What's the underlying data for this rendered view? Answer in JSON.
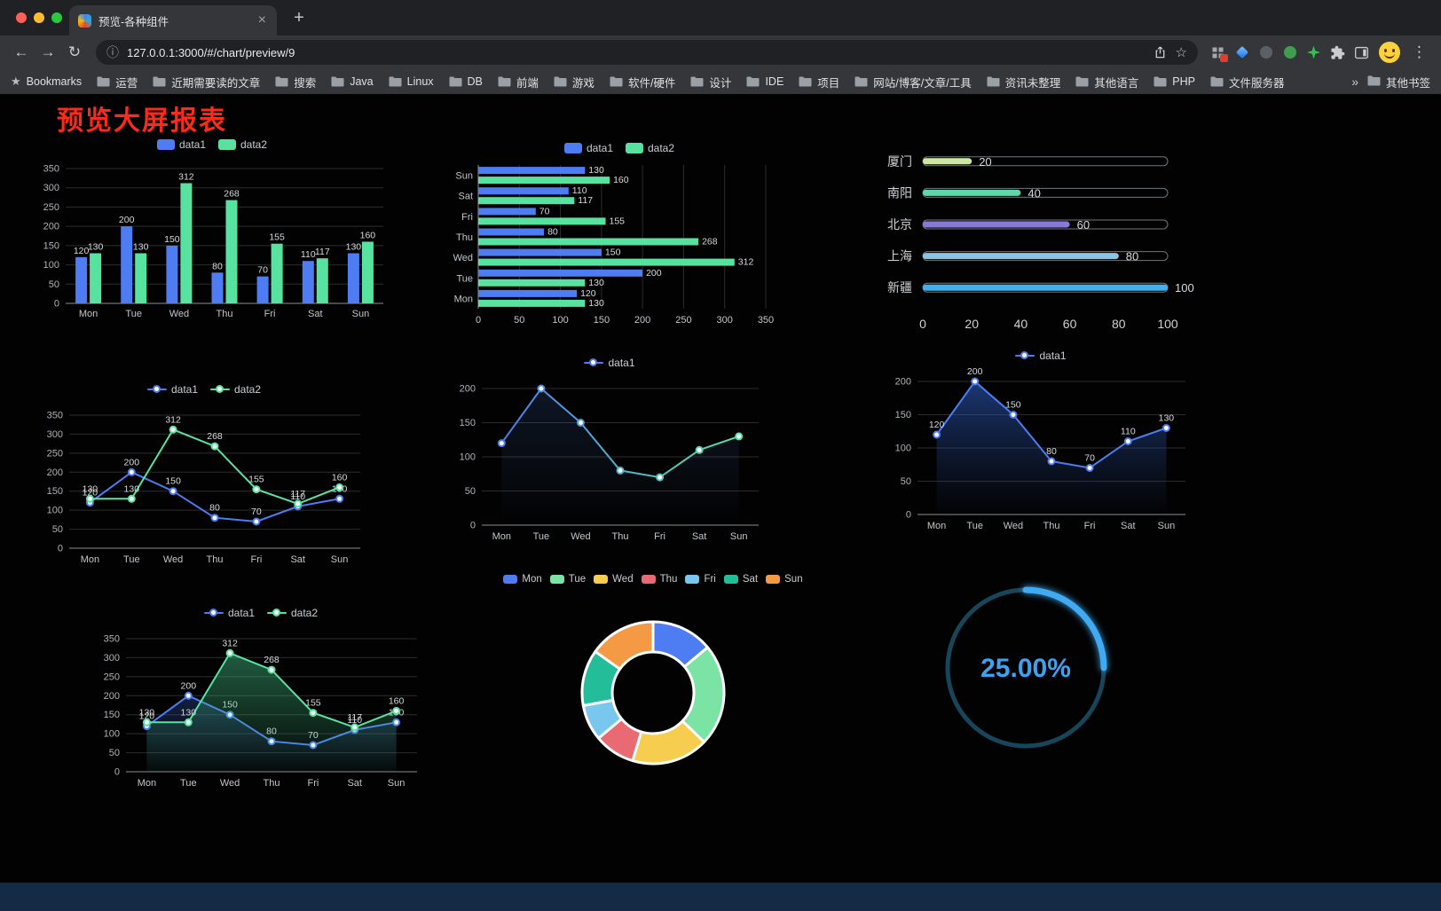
{
  "browser": {
    "tab_title": "预览-各种组件",
    "url": "127.0.0.1:3000/#/chart/preview/9",
    "bookmarks_label": "Bookmarks",
    "bookmarks": [
      "运营",
      "近期需要读的文章",
      "搜索",
      "Java",
      "Linux",
      "DB",
      "前端",
      "游戏",
      "软件/硬件",
      "设计",
      "IDE",
      "项目",
      "网站/博客/文章/工具",
      "资讯未整理",
      "其他语言",
      "PHP",
      "文件服务器"
    ],
    "bookmarks_overflow": "»",
    "other_bookmarks": "其他书签"
  },
  "icons": {
    "back": "←",
    "forward": "→",
    "reload": "↻",
    "info": "ⓘ",
    "star": "☆",
    "menu": "⋮",
    "new_tab": "+",
    "tab_close": "×",
    "bookmarks_star": "★"
  },
  "dashboard": {
    "title": "预览大屏报表",
    "title_color": "#fb2b1b",
    "background": "#020202"
  },
  "chart_data": [
    {
      "type": "bar",
      "categories": [
        "Mon",
        "Tue",
        "Wed",
        "Thu",
        "Fri",
        "Sat",
        "Sun"
      ],
      "series": [
        {
          "name": "data1",
          "color": "#4d7cf3",
          "values": [
            120,
            200,
            150,
            80,
            70,
            110,
            130
          ]
        },
        {
          "name": "data2",
          "color": "#58e2a0",
          "values": [
            130,
            130,
            312,
            268,
            155,
            117,
            160
          ]
        }
      ],
      "ylim": [
        0,
        350
      ],
      "yticks": [
        0,
        50,
        100,
        150,
        200,
        250,
        300,
        350
      ],
      "legend": true,
      "legend_type": "rect",
      "value_labels": true
    },
    {
      "type": "hbar",
      "categories": [
        "Sun",
        "Sat",
        "Fri",
        "Thu",
        "Wed",
        "Tue",
        "Mon"
      ],
      "series": [
        {
          "name": "data1",
          "color": "#4d7cf3",
          "values": [
            130,
            110,
            70,
            80,
            150,
            200,
            120
          ]
        },
        {
          "name": "data2",
          "color": "#58e2a0",
          "values": [
            160,
            117,
            155,
            268,
            312,
            130,
            130
          ]
        }
      ],
      "xlim": [
        0,
        350
      ],
      "xticks": [
        0,
        50,
        100,
        150,
        200,
        250,
        300,
        350
      ],
      "legend": true,
      "legend_type": "rect",
      "value_labels": true
    },
    {
      "type": "progress",
      "max": 100,
      "xticks": [
        0,
        20,
        40,
        60,
        80,
        100
      ],
      "items": [
        {
          "label": "厦门",
          "value": 20,
          "color": "#cbe7a2"
        },
        {
          "label": "南阳",
          "value": 40,
          "color": "#5fd7ab"
        },
        {
          "label": "北京",
          "value": 60,
          "color": "#8679d9"
        },
        {
          "label": "上海",
          "value": 80,
          "color": "#8ac6e4"
        },
        {
          "label": "新疆",
          "value": 100,
          "color": "#3fb1ef"
        }
      ]
    },
    {
      "type": "line",
      "categories": [
        "Mon",
        "Tue",
        "Wed",
        "Thu",
        "Fri",
        "Sat",
        "Sun"
      ],
      "series": [
        {
          "name": "data1",
          "color": "#4d7cf3",
          "values": [
            120,
            200,
            150,
            80,
            70,
            110,
            130
          ]
        },
        {
          "name": "data2",
          "color": "#58e2a0",
          "values": [
            130,
            130,
            312,
            268,
            155,
            117,
            160
          ]
        }
      ],
      "ylim": [
        0,
        350
      ],
      "yticks": [
        0,
        50,
        100,
        150,
        200,
        250,
        300,
        350
      ],
      "legend": true,
      "legend_type": "line",
      "value_labels": true
    },
    {
      "type": "line",
      "categories": [
        "Mon",
        "Tue",
        "Wed",
        "Thu",
        "Fri",
        "Sat",
        "Sun"
      ],
      "series": [
        {
          "name": "data1",
          "color": "#4d7cf3",
          "gradient": [
            "#4d7cf3",
            "#58e2a0"
          ],
          "values": [
            120,
            200,
            150,
            80,
            70,
            110,
            130
          ],
          "area": [
            "rgba(80,130,220,0.16)",
            "rgba(80,130,220,0)"
          ]
        }
      ],
      "ylim": [
        0,
        200
      ],
      "yticks": [
        0,
        50,
        100,
        150,
        200
      ],
      "legend": true,
      "legend_type": "line",
      "value_labels": false
    },
    {
      "type": "line",
      "categories": [
        "Mon",
        "Tue",
        "Wed",
        "Thu",
        "Fri",
        "Sat",
        "Sun"
      ],
      "series": [
        {
          "name": "data1",
          "color": "#4d7cf3",
          "values": [
            120,
            200,
            150,
            80,
            70,
            110,
            130
          ],
          "area": [
            "rgba(50,100,210,0.55)",
            "rgba(40,70,140,0.02)"
          ]
        }
      ],
      "ylim": [
        0,
        200
      ],
      "yticks": [
        0,
        50,
        100,
        150,
        200
      ],
      "legend": true,
      "legend_type": "line",
      "value_labels": true
    },
    {
      "type": "line",
      "categories": [
        "Mon",
        "Tue",
        "Wed",
        "Thu",
        "Fri",
        "Sat",
        "Sun"
      ],
      "series": [
        {
          "name": "data1",
          "color": "#4d7cf3",
          "values": [
            120,
            200,
            150,
            80,
            70,
            110,
            130
          ],
          "area": [
            "rgba(60,100,200,0.30)",
            "rgba(60,100,200,0.02)"
          ]
        },
        {
          "name": "data2",
          "color": "#58e2a0",
          "values": [
            130,
            130,
            312,
            268,
            155,
            117,
            160
          ],
          "area": [
            "rgba(70,200,140,0.45)",
            "rgba(70,200,140,0.03)"
          ]
        }
      ],
      "ylim": [
        0,
        350
      ],
      "yticks": [
        0,
        50,
        100,
        150,
        200,
        250,
        300,
        350
      ],
      "legend": true,
      "legend_type": "line",
      "value_labels": true
    },
    {
      "type": "pie",
      "inner": 46,
      "outer": 80,
      "legend": true,
      "legend_type": "rect",
      "items": [
        {
          "label": "Mon",
          "value": 120,
          "color": "#4d7cf3"
        },
        {
          "label": "Tue",
          "value": 200,
          "color": "#7be3a3"
        },
        {
          "label": "Wed",
          "value": 150,
          "color": "#f6cd4e"
        },
        {
          "label": "Thu",
          "value": 80,
          "color": "#e96a72"
        },
        {
          "label": "Fri",
          "value": 70,
          "color": "#79c6ee"
        },
        {
          "label": "Sat",
          "value": 110,
          "color": "#23bd9a"
        },
        {
          "label": "Sun",
          "value": 130,
          "color": "#f49a45"
        }
      ]
    },
    {
      "type": "gauge",
      "value": 25,
      "display": "25.00%",
      "color": "#41aaf2",
      "text_color": "#3fa2ee",
      "track": "#17465a"
    }
  ]
}
